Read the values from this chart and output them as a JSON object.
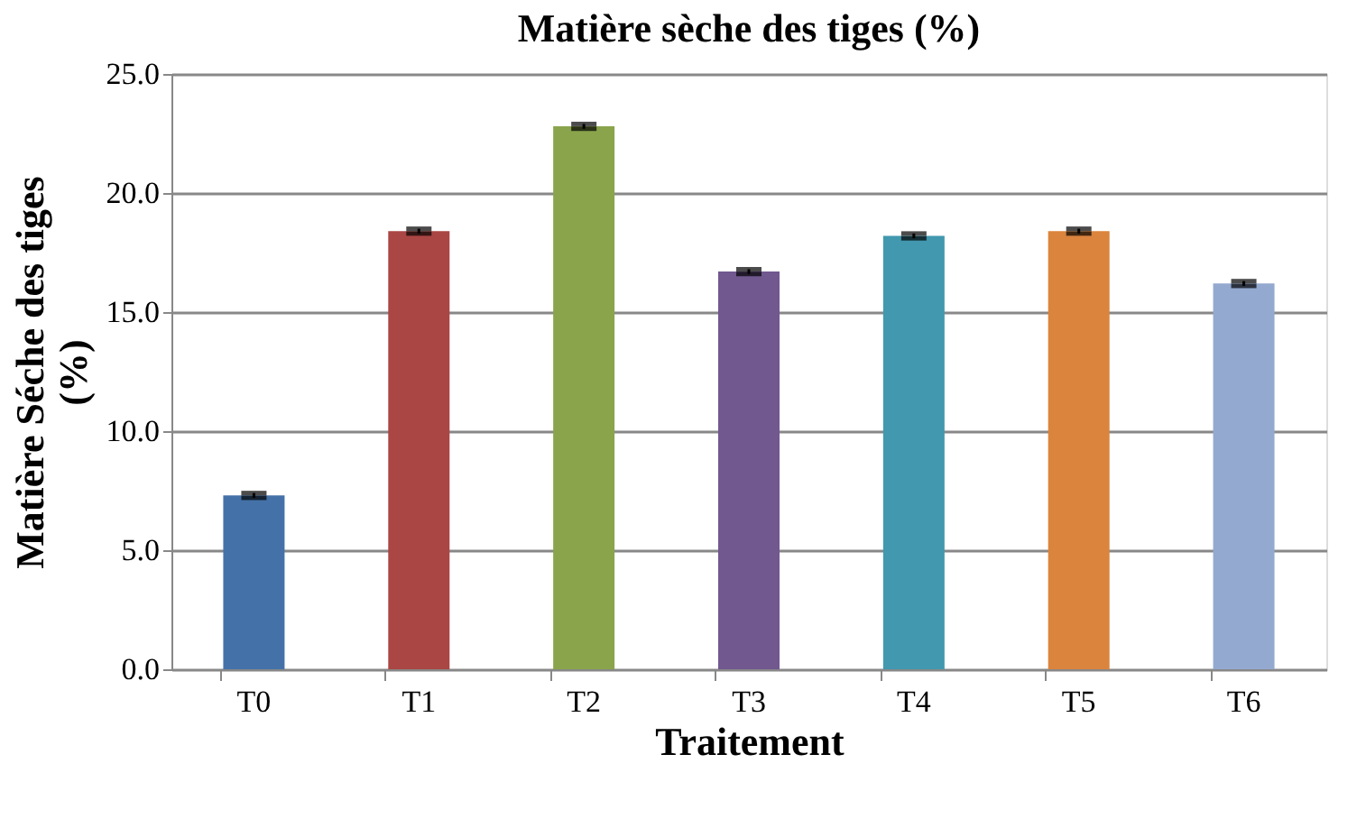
{
  "chart_data": {
    "type": "bar",
    "title": "Matière sèche des tiges (%)",
    "xlabel": "Traitement",
    "ylabel": "Matière Séche des tiges (%)",
    "categories": [
      "T0",
      "T1",
      "T2",
      "T3",
      "T4",
      "T5",
      "T6"
    ],
    "values": [
      7.3,
      18.4,
      22.8,
      16.7,
      18.2,
      18.4,
      16.2
    ],
    "colors": [
      "#4472a8",
      "#aa4644",
      "#8aa44c",
      "#71588f",
      "#4198af",
      "#db843d",
      "#93a9cf"
    ],
    "errors": [
      0.1,
      0.1,
      0.1,
      0.1,
      0.1,
      0.1,
      0.1
    ],
    "ylim": [
      0,
      25
    ],
    "yticks": [
      {
        "value": 0,
        "label": "0.0"
      },
      {
        "value": 5,
        "label": "5.0"
      },
      {
        "value": 10,
        "label": "10.0"
      },
      {
        "value": 15,
        "label": "15.0"
      },
      {
        "value": 20,
        "label": "20.0"
      },
      {
        "value": 25,
        "label": "25.0"
      }
    ],
    "grid": "y"
  }
}
